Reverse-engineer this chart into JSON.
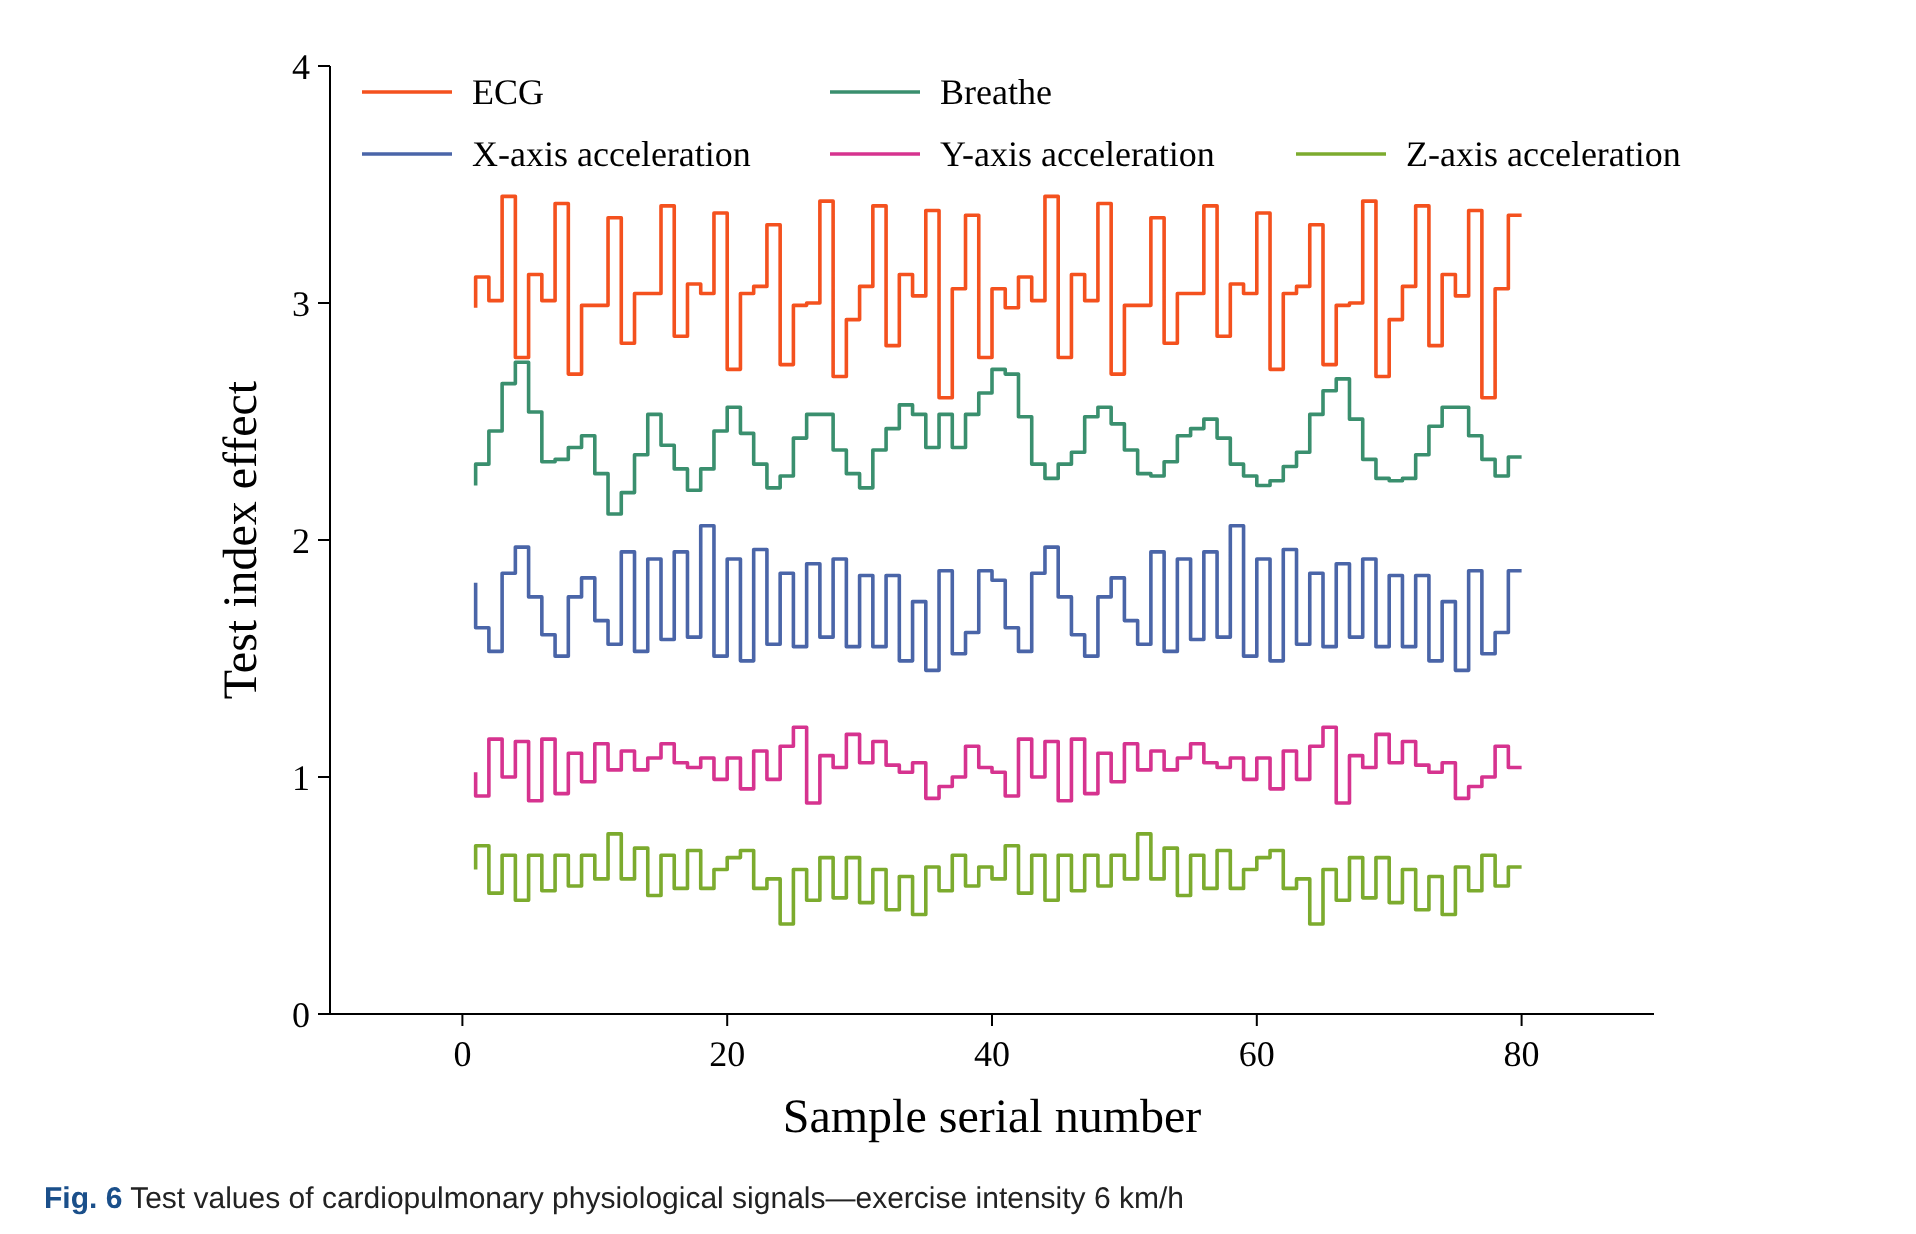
{
  "chart_data": {
    "type": "step",
    "title": "Fig. 6 Test values of cardiopulmonary physiological signals—exercise intensity 6 km/h",
    "xlabel": "Sample serial number",
    "ylabel": "Test index effect",
    "x": [
      1,
      2,
      3,
      4,
      5,
      6,
      7,
      8,
      9,
      10,
      11,
      12,
      13,
      14,
      15,
      16,
      17,
      18,
      19,
      20,
      21,
      22,
      23,
      24,
      25,
      26,
      27,
      28,
      29,
      30,
      31,
      32,
      33,
      34,
      35,
      36,
      37,
      38,
      39,
      40,
      41,
      42,
      43,
      44,
      45,
      46,
      47,
      48,
      49,
      50,
      51,
      52,
      53,
      54,
      55,
      56,
      57,
      58,
      59,
      60,
      61,
      62,
      63,
      64,
      65,
      66,
      67,
      68,
      69,
      70,
      71,
      72,
      73,
      74,
      75,
      76,
      77,
      78,
      79,
      80
    ],
    "xlim": [
      -10,
      90
    ],
    "xticks": [
      0,
      20,
      40,
      60,
      80
    ],
    "ylim": [
      0,
      4
    ],
    "yticks": [
      0,
      1,
      2,
      3,
      4
    ],
    "legend": "top",
    "grid": false,
    "marker": "none",
    "line_style": "solid",
    "series": [
      {
        "name": "ECG",
        "color": "#f4511e",
        "values": [
          2.98,
          3.11,
          3.01,
          3.45,
          2.77,
          3.12,
          3.01,
          3.42,
          2.7,
          2.99,
          2.99,
          3.36,
          2.83,
          3.04,
          3.04,
          3.41,
          2.86,
          3.08,
          3.04,
          3.38,
          2.72,
          3.04,
          3.07,
          3.33,
          2.74,
          2.99,
          3.0,
          3.43,
          2.69,
          2.93,
          3.07,
          3.41,
          2.82,
          3.12,
          3.03,
          3.39,
          2.6,
          3.06,
          3.37,
          2.77,
          3.06,
          2.98,
          3.11,
          3.01,
          3.45,
          2.77,
          3.12,
          3.01,
          3.42,
          2.7,
          2.99,
          2.99,
          3.36,
          2.83,
          3.04,
          3.04,
          3.41,
          2.86,
          3.08,
          3.04,
          3.38,
          2.72,
          3.04,
          3.07,
          3.33,
          2.74,
          2.99,
          3.0,
          3.43,
          2.69,
          2.93,
          3.07,
          3.41,
          2.82,
          3.12,
          3.03,
          3.39,
          2.6,
          3.06,
          3.37
        ]
      },
      {
        "name": "Breathe",
        "color": "#3a8f6e",
        "values": [
          2.23,
          2.32,
          2.46,
          2.66,
          2.75,
          2.54,
          2.33,
          2.34,
          2.39,
          2.44,
          2.28,
          2.11,
          2.2,
          2.36,
          2.53,
          2.4,
          2.3,
          2.21,
          2.3,
          2.46,
          2.56,
          2.45,
          2.32,
          2.22,
          2.27,
          2.43,
          2.53,
          2.53,
          2.38,
          2.28,
          2.22,
          2.38,
          2.47,
          2.57,
          2.53,
          2.39,
          2.53,
          2.39,
          2.53,
          2.62,
          2.72,
          2.7,
          2.52,
          2.32,
          2.26,
          2.32,
          2.37,
          2.52,
          2.56,
          2.49,
          2.38,
          2.28,
          2.27,
          2.33,
          2.44,
          2.47,
          2.51,
          2.43,
          2.32,
          2.27,
          2.23,
          2.25,
          2.31,
          2.37,
          2.53,
          2.63,
          2.68,
          2.51,
          2.34,
          2.26,
          2.25,
          2.26,
          2.36,
          2.48,
          2.56,
          2.56,
          2.44,
          2.34,
          2.27,
          2.35
        ]
      },
      {
        "name": "X-axis acceleration",
        "color": "#4a65a8",
        "values": [
          1.82,
          1.63,
          1.53,
          1.86,
          1.97,
          1.76,
          1.6,
          1.51,
          1.76,
          1.84,
          1.66,
          1.56,
          1.95,
          1.53,
          1.92,
          1.58,
          1.95,
          1.59,
          2.06,
          1.51,
          1.92,
          1.49,
          1.96,
          1.56,
          1.86,
          1.55,
          1.9,
          1.59,
          1.92,
          1.55,
          1.85,
          1.55,
          1.85,
          1.49,
          1.74,
          1.45,
          1.87,
          1.52,
          1.61,
          1.87,
          1.83,
          1.63,
          1.53,
          1.86,
          1.97,
          1.76,
          1.6,
          1.51,
          1.76,
          1.84,
          1.66,
          1.56,
          1.95,
          1.53,
          1.92,
          1.58,
          1.95,
          1.59,
          2.06,
          1.51,
          1.92,
          1.49,
          1.96,
          1.56,
          1.86,
          1.55,
          1.9,
          1.59,
          1.92,
          1.55,
          1.85,
          1.55,
          1.85,
          1.49,
          1.74,
          1.45,
          1.87,
          1.52,
          1.61,
          1.87
        ]
      },
      {
        "name": "Y-axis acceleration",
        "color": "#d6338f",
        "values": [
          1.02,
          0.92,
          1.16,
          1.0,
          1.15,
          0.9,
          1.16,
          0.93,
          1.1,
          0.98,
          1.14,
          1.03,
          1.11,
          1.03,
          1.08,
          1.14,
          1.06,
          1.04,
          1.08,
          0.99,
          1.08,
          0.95,
          1.11,
          0.99,
          1.13,
          1.21,
          0.89,
          1.09,
          1.04,
          1.18,
          1.06,
          1.15,
          1.05,
          1.02,
          1.06,
          0.91,
          0.96,
          1.0,
          1.13,
          1.04,
          1.02,
          0.92,
          1.16,
          1.0,
          1.15,
          0.9,
          1.16,
          0.93,
          1.1,
          0.98,
          1.14,
          1.03,
          1.11,
          1.03,
          1.08,
          1.14,
          1.06,
          1.04,
          1.08,
          0.99,
          1.08,
          0.95,
          1.11,
          0.99,
          1.13,
          1.21,
          0.89,
          1.09,
          1.04,
          1.18,
          1.06,
          1.15,
          1.05,
          1.02,
          1.06,
          0.91,
          0.96,
          1.0,
          1.13,
          1.04
        ]
      },
      {
        "name": "Z-axis acceleration",
        "color": "#7cab2e",
        "values": [
          0.61,
          0.71,
          0.51,
          0.67,
          0.48,
          0.67,
          0.52,
          0.67,
          0.54,
          0.67,
          0.57,
          0.76,
          0.57,
          0.7,
          0.5,
          0.67,
          0.53,
          0.69,
          0.53,
          0.61,
          0.66,
          0.69,
          0.53,
          0.57,
          0.38,
          0.61,
          0.48,
          0.66,
          0.49,
          0.66,
          0.47,
          0.61,
          0.44,
          0.58,
          0.42,
          0.62,
          0.52,
          0.67,
          0.54,
          0.62,
          0.57,
          0.71,
          0.51,
          0.67,
          0.48,
          0.67,
          0.52,
          0.67,
          0.54,
          0.67,
          0.57,
          0.76,
          0.57,
          0.7,
          0.5,
          0.67,
          0.53,
          0.69,
          0.53,
          0.61,
          0.66,
          0.69,
          0.53,
          0.57,
          0.38,
          0.61,
          0.48,
          0.66,
          0.49,
          0.66,
          0.47,
          0.61,
          0.44,
          0.58,
          0.42,
          0.62,
          0.52,
          0.67,
          0.54,
          0.62
        ]
      }
    ]
  }
}
